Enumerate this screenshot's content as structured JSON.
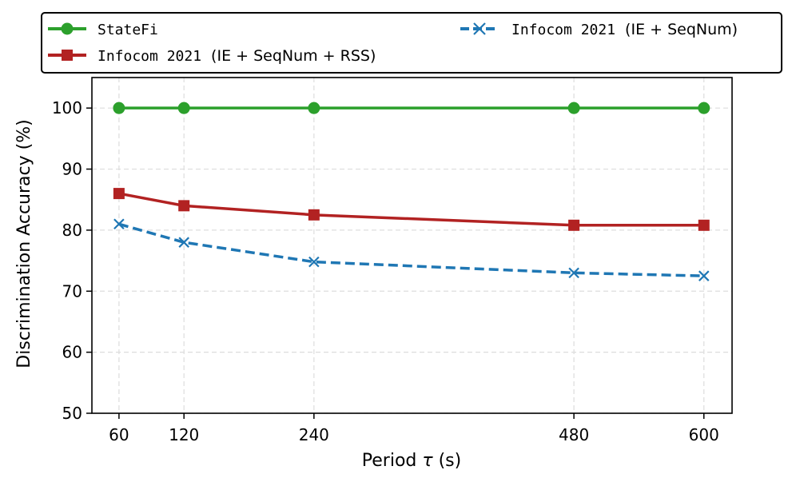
{
  "chart_data": {
    "type": "line",
    "title": "",
    "xlabel_prefix": "Period ",
    "xlabel_symbol": "τ",
    "xlabel_suffix": " (s)",
    "ylabel": "Discrimination Accuracy (%)",
    "x": [
      60,
      120,
      240,
      480,
      600
    ],
    "x_tick_labels": [
      "60",
      "120",
      "240",
      "480",
      "600"
    ],
    "y_ticks": [
      50,
      60,
      70,
      80,
      90,
      100
    ],
    "y_tick_labels": [
      "50",
      "60",
      "70",
      "80",
      "90",
      "100"
    ],
    "xlim": [
      35,
      626
    ],
    "ylim": [
      50,
      105
    ],
    "grid": true,
    "legend_position": "top, above plot",
    "series": [
      {
        "id": "statefi",
        "legend_mono": "StateFi",
        "legend_rest": "",
        "values": [
          100,
          100,
          100,
          100,
          100
        ],
        "color": "#2ca02c",
        "marker": "circle",
        "line": "solid"
      },
      {
        "id": "ie-seqnum-rss",
        "legend_mono": "Infocom 2021",
        "legend_rest": "(IE + SeqNum + RSS)",
        "values": [
          86,
          84,
          82.5,
          80.8,
          80.8
        ],
        "color": "#b22222",
        "marker": "square",
        "line": "solid"
      },
      {
        "id": "ie-seqnum",
        "legend_mono": "Infocom 2021",
        "legend_rest": "(IE + SeqNum)",
        "values": [
          81,
          78,
          74.8,
          73,
          72.5
        ],
        "color": "#1f77b4",
        "marker": "x",
        "line": "dashed"
      }
    ]
  }
}
